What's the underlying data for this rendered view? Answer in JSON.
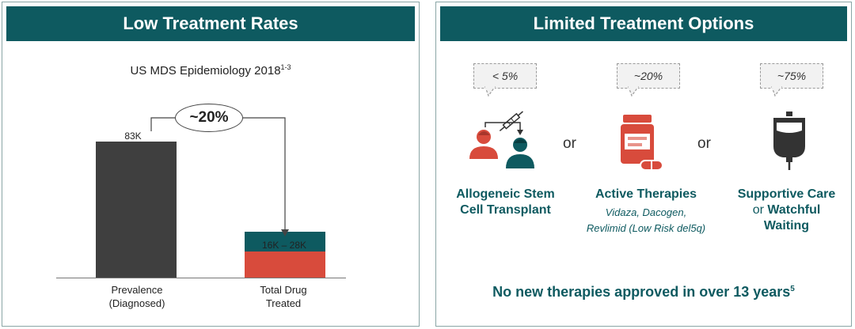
{
  "left_panel": {
    "header": "Low Treatment Rates",
    "chart_title": "US MDS Epidemiology 2018",
    "chart_title_superscript": "1-3",
    "callout_percent": "~20%"
  },
  "chart_data": {
    "type": "bar",
    "title": "US MDS Epidemiology 2018",
    "categories": [
      "Prevalence\n(Diagnosed)",
      "Total Drug\nTreated"
    ],
    "bars": [
      {
        "label": "83K",
        "value": 83,
        "segments": [
          {
            "value": 83,
            "color": "#3f3f3f"
          }
        ]
      },
      {
        "label": "16K – 28K",
        "value": 28,
        "segments": [
          {
            "value": 16,
            "color": "#d84b3c"
          },
          {
            "value": 12,
            "color": "#0e5a60"
          }
        ]
      }
    ],
    "ylim": [
      0,
      83
    ],
    "grid": false
  },
  "categories_display": [
    {
      "line1": "Prevalence",
      "line2": "(Diagnosed)"
    },
    {
      "line1": "Total Drug",
      "line2": "Treated"
    }
  ],
  "right_panel": {
    "header": "Limited Treatment Options",
    "or_text": "or",
    "options": [
      {
        "bubble": "< 5%",
        "title_line1": "Allogeneic Stem",
        "title_line2": "Cell Transplant",
        "icon": "transplant-people-icon"
      },
      {
        "bubble": "~20%",
        "title": "Active Therapies",
        "sub_line1": "Vidaza, Dacogen,",
        "sub_line2": "Revlimid (Low Risk del5q)",
        "icon": "pill-bottle-icon"
      },
      {
        "bubble": "~75%",
        "title_line1": "Supportive Care",
        "title_line2_a": "or ",
        "title_line2_b": "Watchful",
        "title_line3": "Waiting",
        "icon": "iv-bag-icon"
      }
    ],
    "footer": "No new therapies approved in over 13 years",
    "footer_superscript": "5"
  },
  "colors": {
    "teal": "#0e5a60",
    "red": "#d84b3c",
    "dark": "#3f3f3f"
  }
}
